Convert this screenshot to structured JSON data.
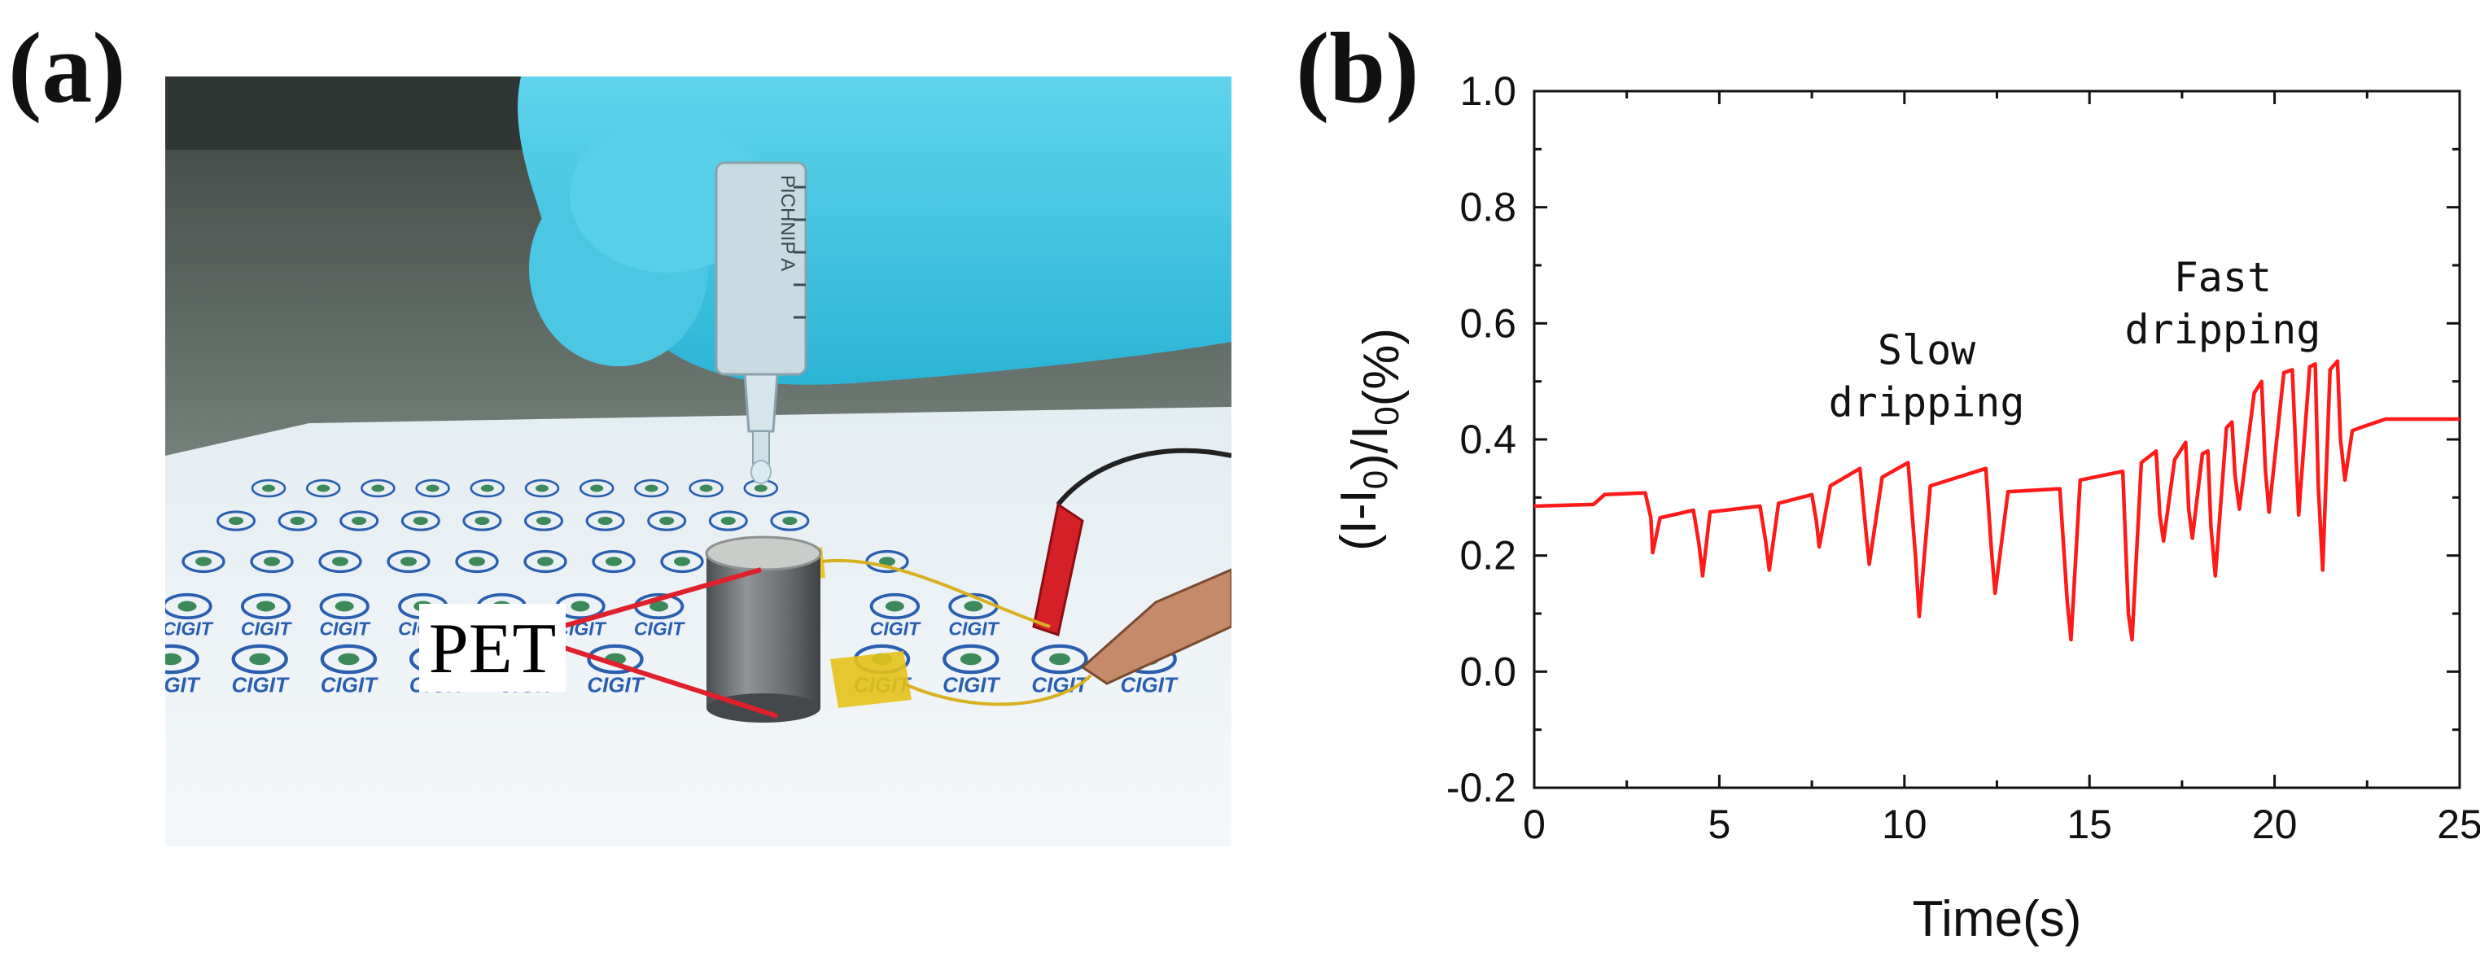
{
  "panels": {
    "a": {
      "label": "(a)",
      "photo": {
        "description_icon": "photo-icon",
        "callout": "PET",
        "logo_text": "CIGIT",
        "syringe_text": "PICHNIP A"
      }
    },
    "b": {
      "label": "(b)"
    }
  },
  "colors": {
    "series": "#ff1a1a",
    "axis": "#111111",
    "glove": "#38c3e0",
    "lead": "#e0202a"
  },
  "chart_data": {
    "type": "line",
    "title": "",
    "xlabel": "Time(s)",
    "ylabel": "(I-I0)/I0(%)",
    "xlim": [
      0,
      25
    ],
    "ylim": [
      -0.2,
      1.0
    ],
    "xticks": [
      0,
      5,
      10,
      15,
      20,
      25
    ],
    "yticks": [
      -0.2,
      0.0,
      0.2,
      0.4,
      0.6,
      0.8,
      1.0
    ],
    "ytick_labels": [
      "-0.2",
      "0.0",
      "0.2",
      "0.4",
      "0.6",
      "0.8",
      "1.0"
    ],
    "annotations": [
      {
        "text": [
          "Slow",
          "dripping"
        ],
        "x": 10.6,
        "y": 0.53
      },
      {
        "text": [
          "Fast",
          "dripping"
        ],
        "x": 18.6,
        "y": 0.655
      }
    ],
    "series": [
      {
        "name": "response",
        "x": [
          0,
          1.6,
          1.9,
          3.0,
          3.15,
          3.2,
          3.4,
          4.3,
          4.45,
          4.55,
          4.75,
          6.1,
          6.25,
          6.35,
          6.6,
          7.5,
          7.62,
          7.7,
          8.0,
          8.8,
          8.95,
          9.05,
          9.4,
          10.1,
          10.3,
          10.4,
          10.7,
          12.2,
          12.35,
          12.45,
          12.8,
          14.2,
          14.4,
          14.5,
          14.75,
          15.9,
          16.05,
          16.15,
          16.4,
          16.8,
          16.9,
          17.0,
          17.3,
          17.6,
          17.68,
          17.78,
          18.05,
          18.2,
          18.28,
          18.4,
          18.7,
          18.85,
          18.93,
          19.05,
          19.45,
          19.65,
          19.75,
          19.85,
          20.25,
          20.48,
          20.56,
          20.65,
          20.95,
          21.1,
          21.18,
          21.3,
          21.5,
          21.7,
          21.78,
          21.9,
          22.1,
          22.3,
          23.0,
          25.0
        ],
        "y": [
          0.285,
          0.288,
          0.305,
          0.308,
          0.265,
          0.205,
          0.265,
          0.278,
          0.22,
          0.165,
          0.275,
          0.285,
          0.225,
          0.175,
          0.29,
          0.305,
          0.26,
          0.215,
          0.32,
          0.35,
          0.25,
          0.185,
          0.335,
          0.36,
          0.2,
          0.095,
          0.32,
          0.35,
          0.21,
          0.135,
          0.31,
          0.315,
          0.12,
          0.055,
          0.33,
          0.345,
          0.1,
          0.055,
          0.36,
          0.38,
          0.27,
          0.225,
          0.365,
          0.395,
          0.28,
          0.23,
          0.375,
          0.38,
          0.25,
          0.165,
          0.42,
          0.43,
          0.34,
          0.28,
          0.48,
          0.5,
          0.35,
          0.275,
          0.515,
          0.52,
          0.4,
          0.27,
          0.525,
          0.53,
          0.32,
          0.175,
          0.52,
          0.535,
          0.4,
          0.33,
          0.415,
          0.42,
          0.435,
          0.435
        ]
      }
    ]
  }
}
